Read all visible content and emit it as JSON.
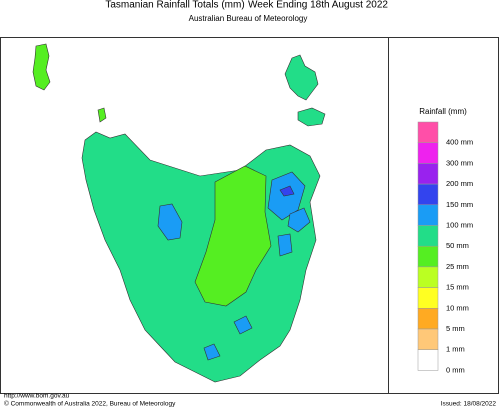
{
  "header": {
    "title": "Tasmanian Rainfall Totals (mm)",
    "period": "Week Ending 18th August 2022",
    "subtitle": "Australian Bureau of Meteorology"
  },
  "legend": {
    "title": "Rainfall (mm)",
    "items": [
      {
        "label": "400 mm",
        "color": "#ff4fa8"
      },
      {
        "label": "300 mm",
        "color": "#ee22ee"
      },
      {
        "label": "200 mm",
        "color": "#9922ee"
      },
      {
        "label": "150 mm",
        "color": "#3344ee"
      },
      {
        "label": "100 mm",
        "color": "#1a9cf5"
      },
      {
        "label": "50 mm",
        "color": "#22dd88"
      },
      {
        "label": "25 mm",
        "color": "#55ee22"
      },
      {
        "label": "15 mm",
        "color": "#bbff22"
      },
      {
        "label": "10 mm",
        "color": "#ffff22"
      },
      {
        "label": "5 mm",
        "color": "#ffaa22"
      },
      {
        "label": "1 mm",
        "color": "#ffc878"
      },
      {
        "label": "0 mm",
        "color": "#ffffff"
      }
    ]
  },
  "footer": {
    "url": "http://www.bom.gov.au",
    "copyright": "© Commonwealth of Australia 2022, Bureau of Meteorology",
    "issued": "Issued: 18/08/2022"
  }
}
